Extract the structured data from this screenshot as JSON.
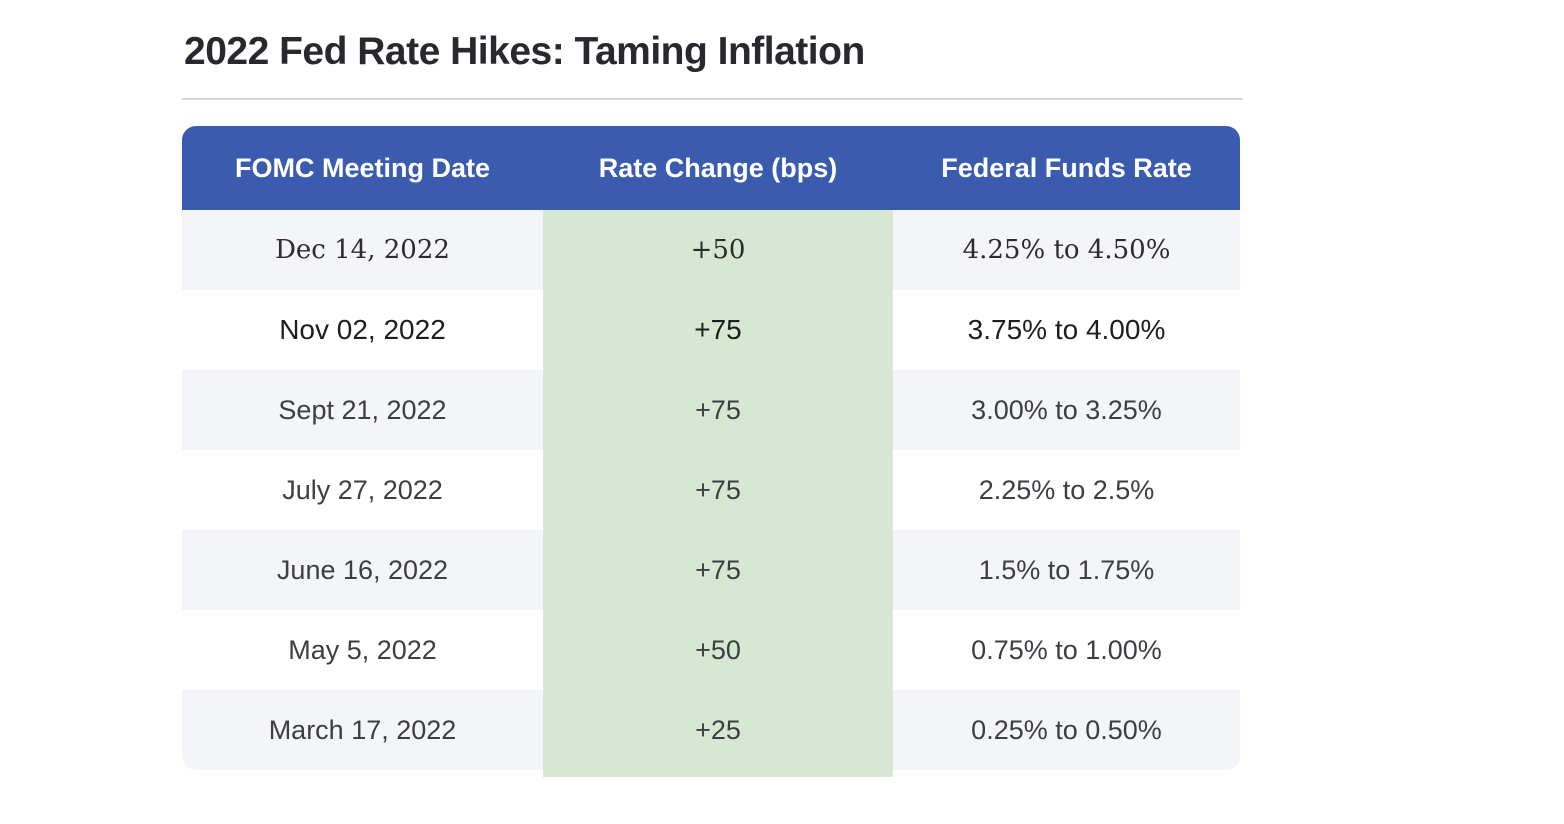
{
  "title": "2022 Fed Rate Hikes: Taming Inflation",
  "colors": {
    "header_bg": "#3b5cae",
    "header_text": "#ffffff",
    "rate_change_column_bg": "#d7e8d2",
    "row_alt_bg": "#f4f5f9",
    "row_bg": "#ffffff",
    "body_text": "#3d3e44",
    "title_text": "#28282e",
    "divider": "#dadada"
  },
  "chart_data": {
    "type": "table",
    "title": "2022 Fed Rate Hikes: Taming Inflation",
    "columns": [
      "FOMC Meeting Date",
      "Rate Change (bps)",
      "Federal Funds Rate"
    ],
    "rows": [
      [
        "Dec 14, 2022",
        "+50",
        "4.25% to 4.50%"
      ],
      [
        "Nov 02, 2022",
        "+75",
        "3.75% to 4.00%"
      ],
      [
        "Sept 21, 2022",
        "+75",
        "3.00% to 3.25%"
      ],
      [
        "July 27, 2022",
        "+75",
        "2.25% to 2.5%"
      ],
      [
        "June 16, 2022",
        "+75",
        "1.5% to 1.75%"
      ],
      [
        "May 5, 2022",
        "+50",
        "0.75% to 1.00%"
      ],
      [
        "March 17, 2022",
        "+25",
        "0.25% to 0.50%"
      ]
    ],
    "rate_change_bps_numeric": [
      50,
      75,
      75,
      75,
      75,
      50,
      25
    ],
    "layout_hints": {
      "header_style": "blue banner, rounded top corners",
      "rate_change_column_highlight": "light green full-height band",
      "row_striping": "alternating light lavender-gray and white",
      "grid": false
    }
  }
}
